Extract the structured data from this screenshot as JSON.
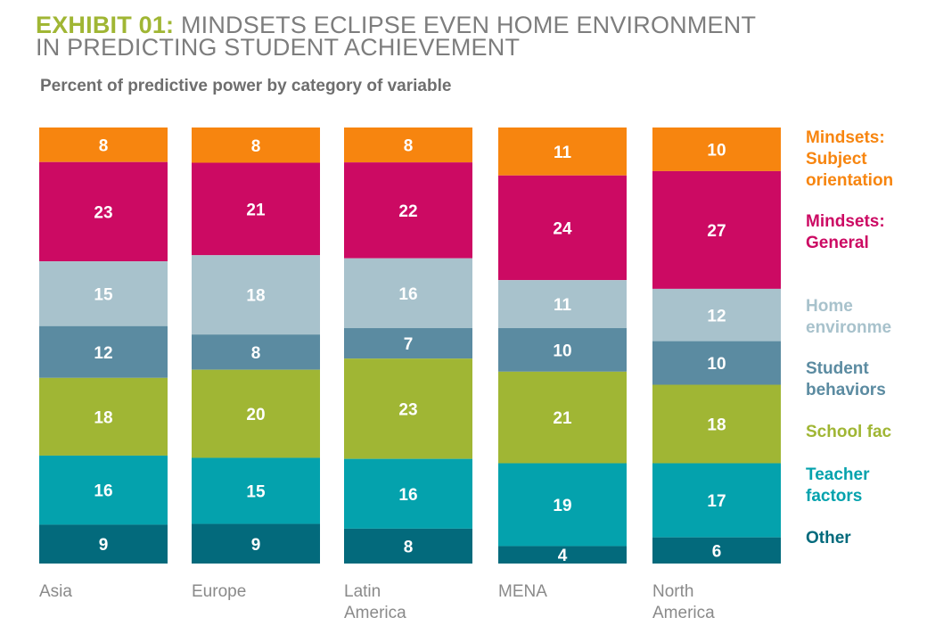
{
  "title": {
    "exhibit": "EXHIBIT 01:",
    "line1": "MINDSETS ECLIPSE EVEN HOME ENVIRONMENT",
    "line2": "IN PREDICTING STUDENT ACHIEVEMENT"
  },
  "subtitle": "Percent of predictive power by category of variable",
  "legend": [
    {
      "lines": [
        "Mindsets:",
        "Subject",
        "orientation"
      ],
      "color": "#f7850f"
    },
    {
      "lines": [
        "Mindsets:",
        "General"
      ],
      "color": "#cc0a63"
    },
    {
      "lines": [
        "Home",
        "environme"
      ],
      "color": "#a8c2cc"
    },
    {
      "lines": [
        "Student",
        "behaviors"
      ],
      "color": "#5b8ba1"
    },
    {
      "lines": [
        "School fac"
      ],
      "color": "#a0b634"
    },
    {
      "lines": [
        "Teacher",
        "factors"
      ],
      "color": "#04a2ad"
    },
    {
      "lines": [
        "Other"
      ],
      "color": "#036a7c"
    }
  ],
  "chart_data": {
    "type": "bar",
    "stacked": true,
    "categories": [
      [
        "Asia"
      ],
      [
        "Europe"
      ],
      [
        "Latin",
        "America"
      ],
      [
        "MENA"
      ],
      [
        "North",
        "America"
      ]
    ],
    "series": [
      {
        "name": "Mindsets: Subject orientation",
        "color": "#f7850f",
        "values": [
          8,
          8,
          8,
          11,
          10
        ]
      },
      {
        "name": "Mindsets: General",
        "color": "#cc0a63",
        "values": [
          23,
          21,
          22,
          24,
          27
        ]
      },
      {
        "name": "Home environment",
        "color": "#a8c2cc",
        "values": [
          15,
          18,
          16,
          11,
          12
        ]
      },
      {
        "name": "Student behaviors",
        "color": "#5b8ba1",
        "values": [
          12,
          8,
          7,
          10,
          10
        ]
      },
      {
        "name": "School factors",
        "color": "#a0b634",
        "values": [
          18,
          20,
          23,
          21,
          18
        ]
      },
      {
        "name": "Teacher factors",
        "color": "#04a2ad",
        "values": [
          16,
          15,
          16,
          19,
          17
        ]
      },
      {
        "name": "Other",
        "color": "#036a7c",
        "values": [
          9,
          9,
          8,
          4,
          6
        ]
      }
    ],
    "legend_position": "right",
    "grid": false
  }
}
